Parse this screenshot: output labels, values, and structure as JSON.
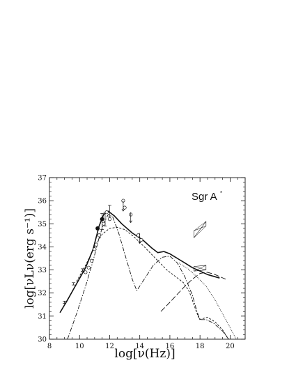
{
  "chart_data": {
    "type": "line",
    "title": "",
    "xlabel": "log[ν(Hz)]",
    "ylabel": "log[νLν(erg s⁻¹)]",
    "xlim": [
      8,
      21
    ],
    "ylim": [
      30,
      37
    ],
    "xticks": [
      8,
      10,
      12,
      14,
      16,
      18,
      20
    ],
    "yticks": [
      30,
      31,
      32,
      33,
      34,
      35,
      36,
      37
    ],
    "annotation": {
      "text": "Sgr A",
      "superscript": "*",
      "x": 17.0,
      "y": 35.9
    },
    "series": [
      {
        "style": "solid-thick",
        "points": [
          [
            8.7,
            31.15
          ],
          [
            9.2,
            31.7
          ],
          [
            9.8,
            32.4
          ],
          [
            10.4,
            33.1
          ],
          [
            10.9,
            33.9
          ],
          [
            11.3,
            34.9
          ],
          [
            11.6,
            35.4
          ],
          [
            11.9,
            35.55
          ],
          [
            12.3,
            35.35
          ],
          [
            12.8,
            35.0
          ],
          [
            13.5,
            34.6
          ],
          [
            14.2,
            34.3
          ],
          [
            14.8,
            33.95
          ],
          [
            15.2,
            33.75
          ],
          [
            15.6,
            33.8
          ],
          [
            16.0,
            33.7
          ],
          [
            16.5,
            33.5
          ],
          [
            17.0,
            33.3
          ],
          [
            17.5,
            33.1
          ],
          [
            18.0,
            32.95
          ],
          [
            18.5,
            32.8
          ],
          [
            19.3,
            32.65
          ]
        ]
      },
      {
        "style": "dashed",
        "points": [
          [
            9.8,
            32.5
          ],
          [
            10.4,
            33.2
          ],
          [
            11.0,
            34.0
          ],
          [
            11.5,
            34.55
          ],
          [
            12.0,
            34.8
          ],
          [
            12.5,
            34.85
          ],
          [
            13.0,
            34.75
          ],
          [
            13.5,
            34.5
          ],
          [
            14.0,
            34.2
          ],
          [
            14.6,
            33.8
          ],
          [
            15.2,
            33.4
          ],
          [
            15.8,
            33.0
          ],
          [
            16.4,
            32.7
          ],
          [
            16.9,
            32.45
          ],
          [
            17.3,
            32.05
          ],
          [
            17.7,
            31.3
          ],
          [
            17.95,
            30.85
          ],
          [
            18.5,
            30.95
          ],
          [
            19.0,
            30.75
          ],
          [
            19.5,
            30.4
          ],
          [
            19.9,
            30.0
          ]
        ]
      },
      {
        "style": "dash-dot",
        "points": [
          [
            9.2,
            30.0
          ],
          [
            9.8,
            31.1
          ],
          [
            10.4,
            32.3
          ],
          [
            10.9,
            33.4
          ],
          [
            11.3,
            34.4
          ],
          [
            11.6,
            35.0
          ],
          [
            11.9,
            35.4
          ],
          [
            12.2,
            35.3
          ],
          [
            12.6,
            34.6
          ],
          [
            13.0,
            33.7
          ],
          [
            13.5,
            32.6
          ],
          [
            13.8,
            32.1
          ],
          [
            14.3,
            32.6
          ],
          [
            14.9,
            33.2
          ],
          [
            15.5,
            33.55
          ],
          [
            16.0,
            33.6
          ],
          [
            16.5,
            33.3
          ],
          [
            17.0,
            32.7
          ],
          [
            17.5,
            31.9
          ],
          [
            17.8,
            31.2
          ],
          [
            18.0,
            30.85
          ],
          [
            18.4,
            30.85
          ],
          [
            18.9,
            30.7
          ],
          [
            19.5,
            30.35
          ],
          [
            19.9,
            30.0
          ]
        ]
      },
      {
        "style": "long-dash",
        "points": [
          [
            15.4,
            31.2
          ],
          [
            16.0,
            31.6
          ],
          [
            16.5,
            31.95
          ],
          [
            17.0,
            32.3
          ],
          [
            17.5,
            32.6
          ],
          [
            18.0,
            32.85
          ],
          [
            18.5,
            32.9
          ],
          [
            19.0,
            32.8
          ],
          [
            19.7,
            32.6
          ]
        ]
      },
      {
        "style": "dotted",
        "points": [
          [
            16.6,
            33.3
          ],
          [
            17.2,
            33.05
          ],
          [
            17.8,
            32.7
          ],
          [
            18.4,
            32.3
          ],
          [
            19.0,
            31.7
          ],
          [
            19.5,
            31.1
          ],
          [
            20.0,
            30.5
          ],
          [
            20.4,
            30.0
          ]
        ]
      }
    ],
    "data_points_filled": [
      [
        11.2,
        34.8
      ],
      [
        11.5,
        35.2
      ]
    ],
    "data_points_open": [
      [
        10.4,
        32.9
      ],
      [
        10.6,
        33.1
      ],
      [
        10.8,
        33.4
      ],
      [
        11.0,
        33.9
      ],
      [
        11.1,
        34.1
      ],
      [
        11.3,
        34.5
      ],
      [
        11.6,
        35.0
      ],
      [
        11.8,
        35.5
      ],
      [
        12.0,
        35.2
      ],
      [
        12.9,
        36.0
      ],
      [
        13.0,
        35.7
      ],
      [
        13.4,
        35.4
      ],
      [
        13.9,
        34.5
      ],
      [
        14.1,
        34.3
      ]
    ],
    "error_bars": [
      [
        9.0,
        31.6,
        0.05
      ],
      [
        9.6,
        32.4,
        0.05
      ],
      [
        10.2,
        33.0,
        0.05
      ],
      [
        11.5,
        35.1,
        0.35
      ],
      [
        11.7,
        35.2,
        0.3
      ],
      [
        12.0,
        35.55,
        0.25
      ]
    ],
    "upper_limits": [
      [
        12.9,
        36.0
      ],
      [
        13.4,
        35.5
      ],
      [
        14.0,
        34.6
      ]
    ],
    "xray_bowties": [
      {
        "x1": 17.6,
        "x2": 18.4,
        "ylo": [
          34.4,
          35.1
        ],
        "yhi": [
          34.7,
          34.9
        ]
      },
      {
        "x1": 17.6,
        "x2": 18.4,
        "ylo": [
          32.95,
          33.0
        ],
        "yhi": [
          33.15,
          33.2
        ]
      }
    ]
  }
}
